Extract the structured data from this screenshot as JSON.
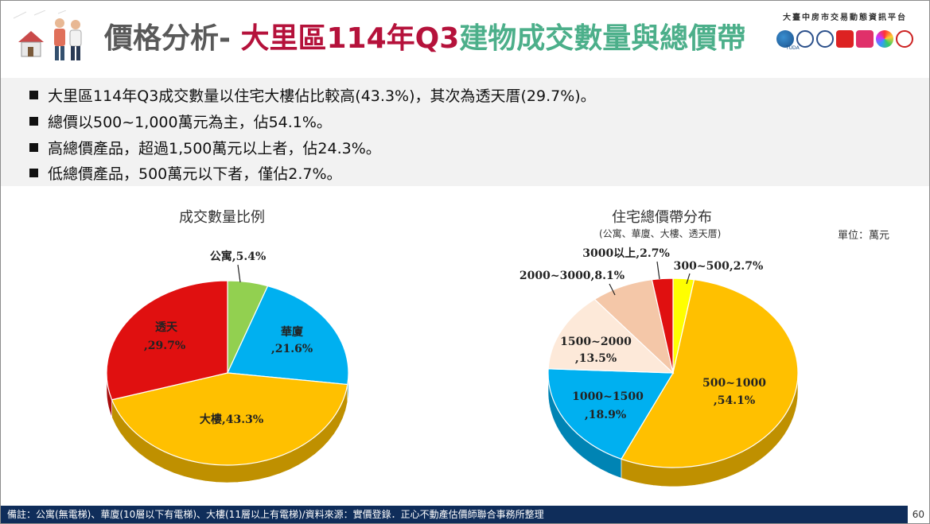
{
  "header": {
    "title_part1": "價格分析- ",
    "title_part2": "大里區114年Q3",
    "title_part3": "建物成交數量與總價帶",
    "brand_text": "大臺中房市交易動態資訊平台",
    "brand_logo_caption": "TUDA"
  },
  "bullets": [
    "大里區114年Q3成交數量以住宅大樓佔比較高(43.3%)，其次為透天厝(29.7%)。",
    "總價以500~1,000萬元為主，佔54.1%。",
    "高總價產品，超過1,500萬元以上者，佔24.3%。",
    "低總價產品，500萬元以下者，僅佔2.7%。"
  ],
  "footer": {
    "note": "備註：公寓(無電梯)、華廈(10層以下有電梯)、大樓(11層以上有電梯)/資料來源：實價登錄．正心不動產估價師聯合事務所整理",
    "page_number": "60"
  },
  "unit_label": "單位：萬元",
  "chart_data": [
    {
      "type": "pie",
      "title": "成交數量比例",
      "slices": [
        {
          "label": "公寓",
          "value": 5.4,
          "text": "公寓,5.4%",
          "color": "#92d050"
        },
        {
          "label": "華廈",
          "value": 21.6,
          "text1": "華廈",
          "text2": ",21.6%",
          "color": "#00b0f0"
        },
        {
          "label": "大樓",
          "value": 43.3,
          "text": "大樓,43.3%",
          "color": "#ffc000"
        },
        {
          "label": "透天",
          "value": 29.7,
          "text1": "透天",
          "text2": ",29.7%",
          "color": "#e01010"
        }
      ]
    },
    {
      "type": "pie",
      "title": "住宅總價帶分布",
      "subtitle": "(公寓、華廈、大樓、透天厝)",
      "slices": [
        {
          "label": "300~500",
          "value": 2.7,
          "text": "300~500,2.7%",
          "color": "#ffff00"
        },
        {
          "label": "500~1000",
          "value": 54.1,
          "text1": "500~1000",
          "text2": ",54.1%",
          "color": "#ffc000"
        },
        {
          "label": "1000~1500",
          "value": 18.9,
          "text1": "1000~1500",
          "text2": ",18.9%",
          "color": "#00b0f0"
        },
        {
          "label": "1500~2000",
          "value": 13.5,
          "text1": "1500~2000",
          "text2": ",13.5%",
          "color": "#fde9d9"
        },
        {
          "label": "2000~3000",
          "value": 8.1,
          "text": "2000~3000,8.1%",
          "color": "#f4c7a8"
        },
        {
          "label": "3000以上",
          "value": 2.7,
          "text": "3000以上,2.7%",
          "color": "#e01010"
        }
      ]
    }
  ]
}
